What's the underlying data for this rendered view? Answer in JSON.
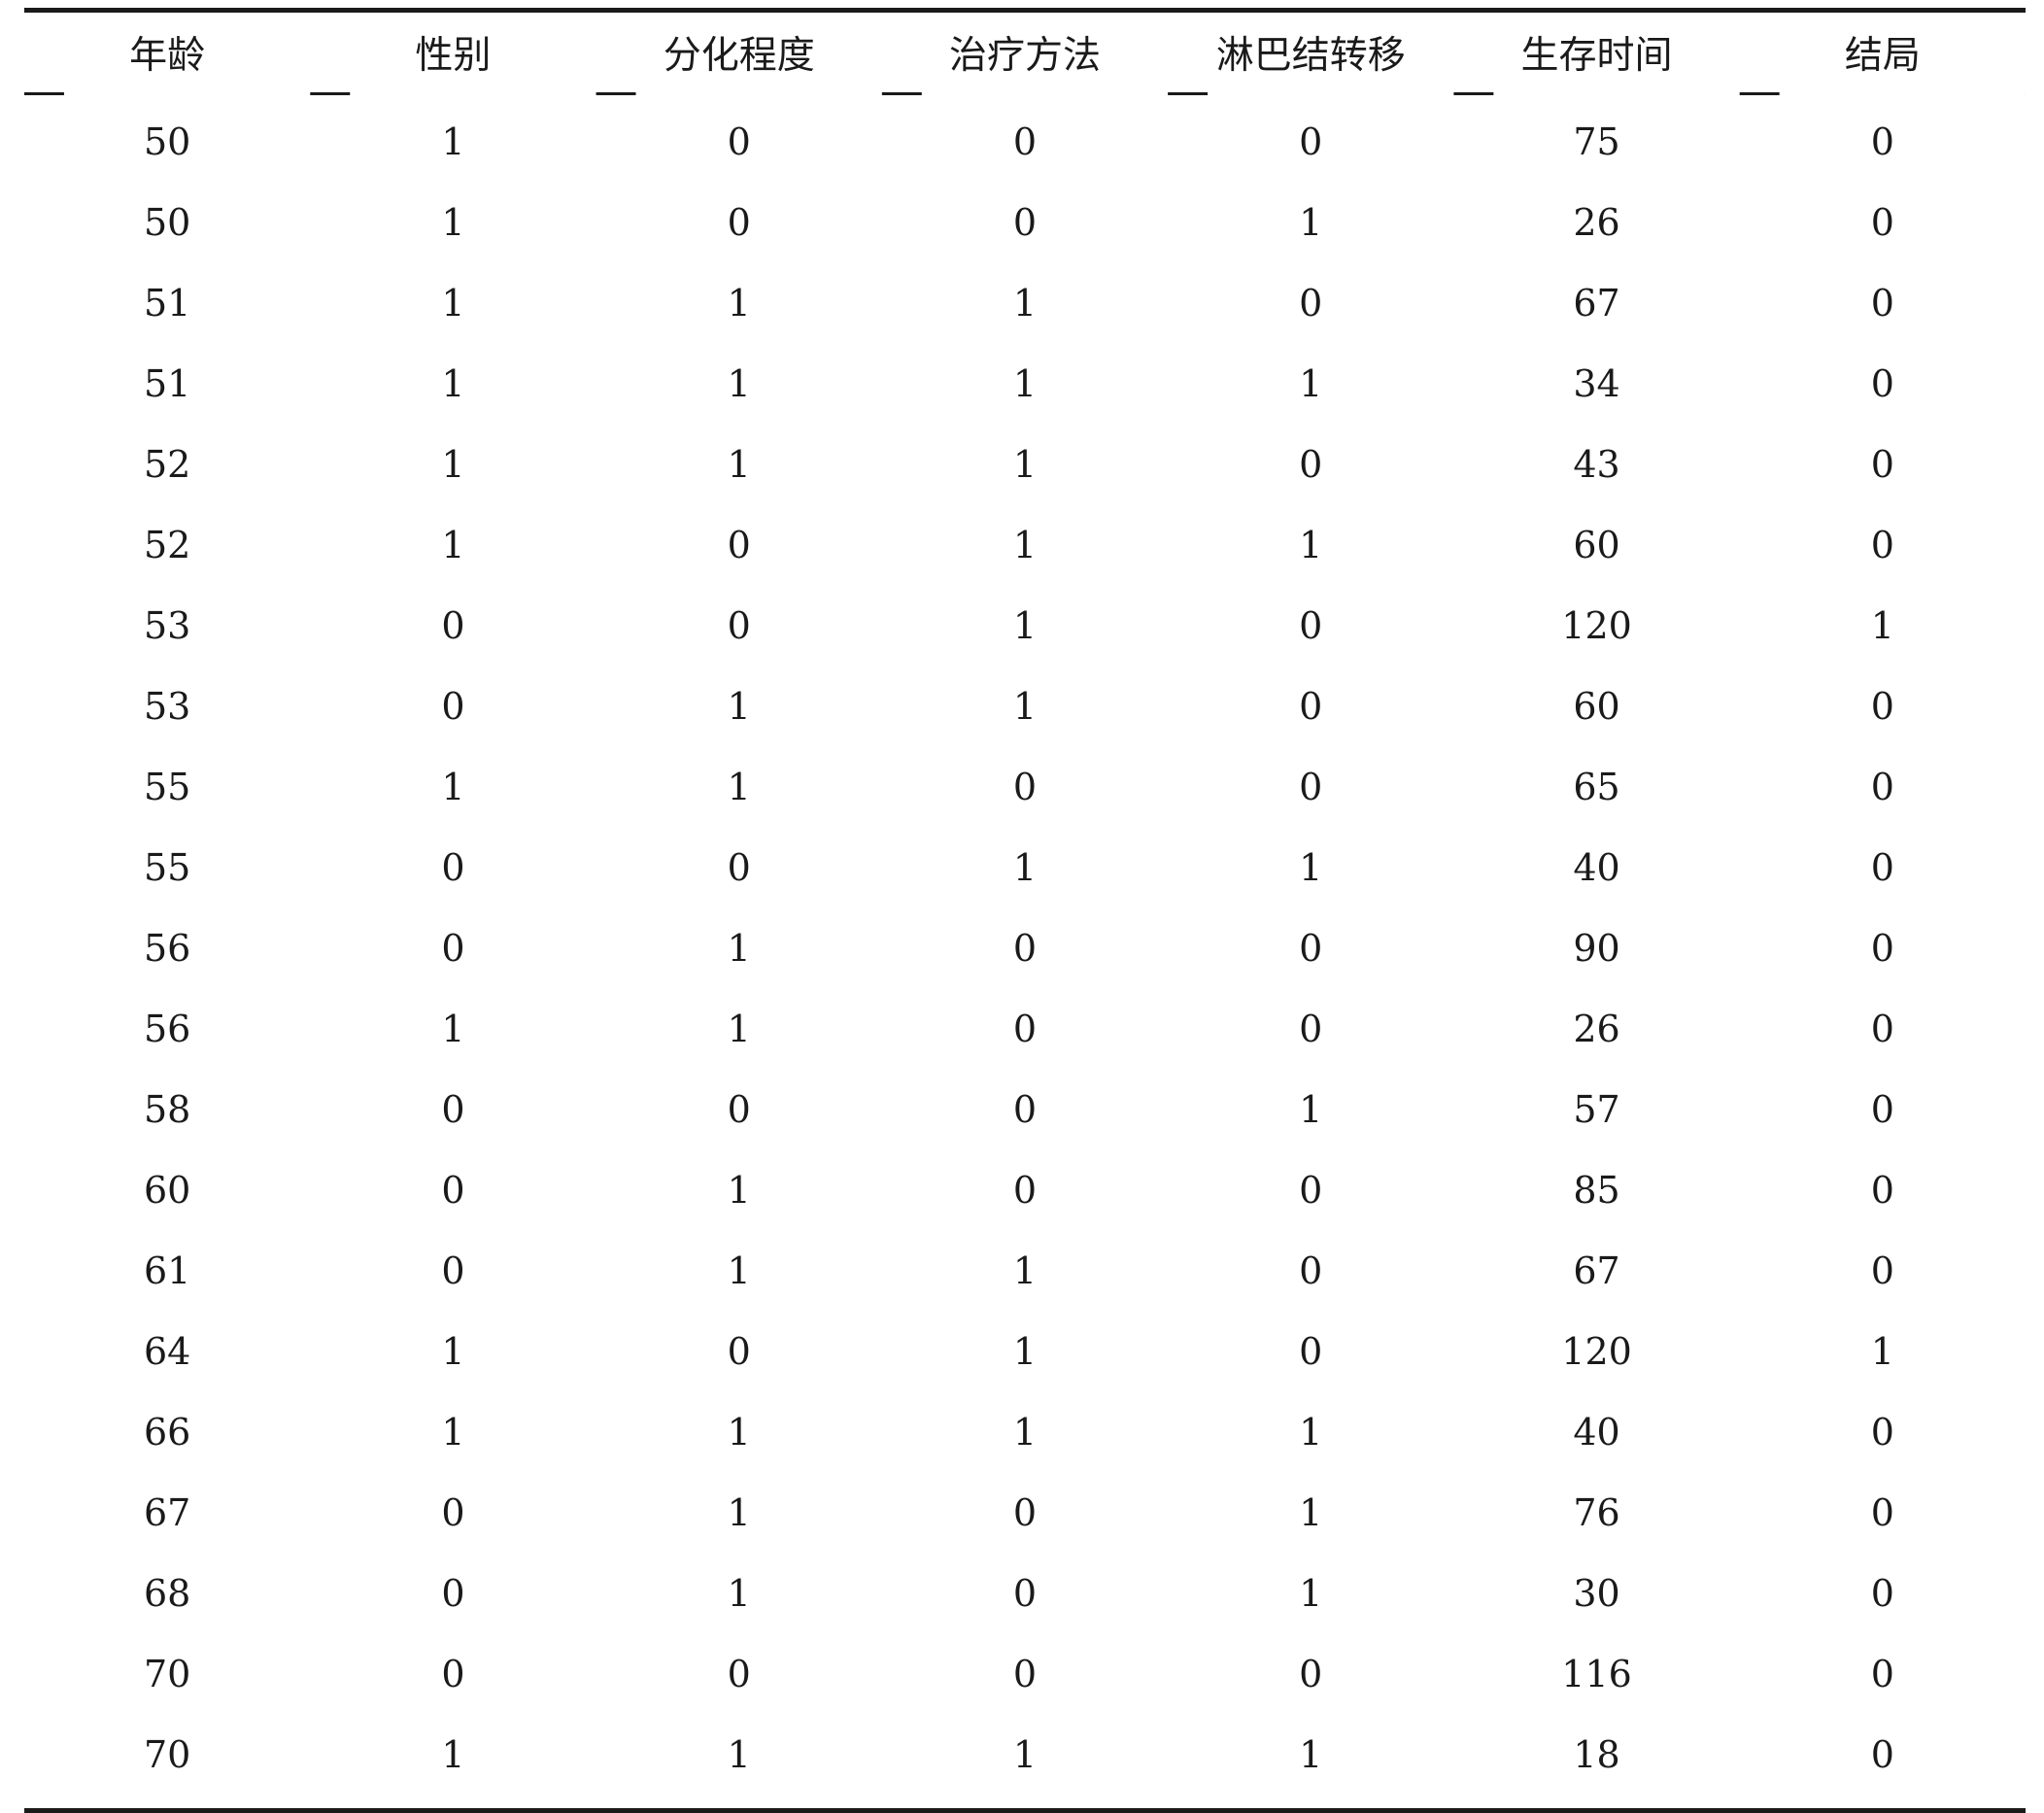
{
  "table": {
    "headers": [
      "年龄",
      "性别",
      "分化程度",
      "治疗方法",
      "淋巴结转移",
      "生存时间",
      "结局"
    ],
    "rows": [
      [
        "50",
        "1",
        "0",
        "0",
        "0",
        "75",
        "0"
      ],
      [
        "50",
        "1",
        "0",
        "0",
        "1",
        "26",
        "0"
      ],
      [
        "51",
        "1",
        "1",
        "1",
        "0",
        "67",
        "0"
      ],
      [
        "51",
        "1",
        "1",
        "1",
        "1",
        "34",
        "0"
      ],
      [
        "52",
        "1",
        "1",
        "1",
        "0",
        "43",
        "0"
      ],
      [
        "52",
        "1",
        "0",
        "1",
        "1",
        "60",
        "0"
      ],
      [
        "53",
        "0",
        "0",
        "1",
        "0",
        "120",
        "1"
      ],
      [
        "53",
        "0",
        "1",
        "1",
        "0",
        "60",
        "0"
      ],
      [
        "55",
        "1",
        "1",
        "0",
        "0",
        "65",
        "0"
      ],
      [
        "55",
        "0",
        "0",
        "1",
        "1",
        "40",
        "0"
      ],
      [
        "56",
        "0",
        "1",
        "0",
        "0",
        "90",
        "0"
      ],
      [
        "56",
        "1",
        "1",
        "0",
        "0",
        "26",
        "0"
      ],
      [
        "58",
        "0",
        "0",
        "0",
        "1",
        "57",
        "0"
      ],
      [
        "60",
        "0",
        "1",
        "0",
        "0",
        "85",
        "0"
      ],
      [
        "61",
        "0",
        "1",
        "1",
        "0",
        "67",
        "0"
      ],
      [
        "64",
        "1",
        "0",
        "1",
        "0",
        "120",
        "1"
      ],
      [
        "66",
        "1",
        "1",
        "1",
        "1",
        "40",
        "0"
      ],
      [
        "67",
        "0",
        "1",
        "0",
        "1",
        "76",
        "0"
      ],
      [
        "68",
        "0",
        "1",
        "0",
        "1",
        "30",
        "0"
      ],
      [
        "70",
        "0",
        "0",
        "0",
        "0",
        "116",
        "0"
      ],
      [
        "70",
        "1",
        "1",
        "1",
        "1",
        "18",
        "0"
      ]
    ]
  }
}
